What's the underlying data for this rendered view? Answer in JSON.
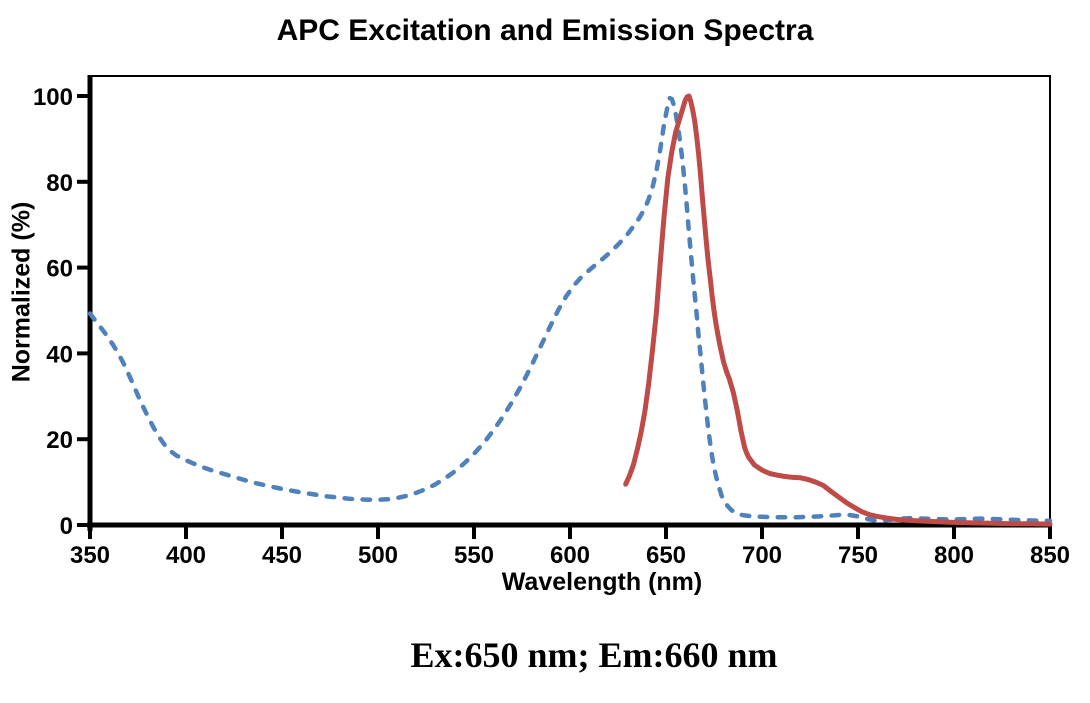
{
  "figure": {
    "caption": "Ex:650 nm; Em:660 nm"
  },
  "chart_data": {
    "type": "line",
    "title": "APC Excitation and Emission Spectra",
    "xlabel": "Wavelength (nm)",
    "ylabel": "Normalized (%)",
    "xlim": [
      350,
      850
    ],
    "ylim": [
      0,
      100
    ],
    "x_ticks": [
      350,
      400,
      450,
      500,
      550,
      600,
      650,
      700,
      750,
      800,
      850
    ],
    "y_ticks": [
      0,
      20,
      40,
      60,
      80,
      100
    ],
    "grid": false,
    "legend": "none",
    "axis_color": "#000000",
    "series": [
      {
        "name": "Excitation",
        "peak_nm": 650,
        "line_style": "dashed",
        "color": "#4F81BD",
        "points": [
          [
            350,
            49.3
          ],
          [
            353,
            47.5
          ],
          [
            356,
            45.8
          ],
          [
            359,
            44
          ],
          [
            362,
            42
          ],
          [
            365,
            39.8
          ],
          [
            368,
            37.2
          ],
          [
            371,
            34.3
          ],
          [
            374,
            31.2
          ],
          [
            377,
            28.2
          ],
          [
            380,
            25.4
          ],
          [
            383,
            22.8
          ],
          [
            386,
            20.5
          ],
          [
            389,
            18.6
          ],
          [
            392,
            17.2
          ],
          [
            395,
            16.2
          ],
          [
            399,
            15.3
          ],
          [
            403,
            14.5
          ],
          [
            408,
            13.6
          ],
          [
            413,
            12.8
          ],
          [
            419,
            12
          ],
          [
            425,
            11.2
          ],
          [
            431,
            10.4
          ],
          [
            437,
            9.7
          ],
          [
            443,
            9.1
          ],
          [
            449,
            8.5
          ],
          [
            455,
            8
          ],
          [
            461,
            7.5
          ],
          [
            467,
            7.1
          ],
          [
            473,
            6.7
          ],
          [
            479,
            6.4
          ],
          [
            485,
            6.1
          ],
          [
            490,
            6
          ],
          [
            495,
            5.9
          ],
          [
            500,
            5.9
          ],
          [
            505,
            6
          ],
          [
            510,
            6.3
          ],
          [
            515,
            6.8
          ],
          [
            520,
            7.5
          ],
          [
            525,
            8.4
          ],
          [
            530,
            9.5
          ],
          [
            535,
            10.9
          ],
          [
            540,
            12.5
          ],
          [
            545,
            14.4
          ],
          [
            550,
            16.6
          ],
          [
            555,
            19.1
          ],
          [
            560,
            22
          ],
          [
            565,
            25.2
          ],
          [
            570,
            28.8
          ],
          [
            575,
            32.8
          ],
          [
            580,
            37.2
          ],
          [
            585,
            41.9
          ],
          [
            590,
            46.6
          ],
          [
            594,
            50.2
          ],
          [
            598,
            53.3
          ],
          [
            602,
            55.8
          ],
          [
            606,
            57.8
          ],
          [
            610,
            59.4
          ],
          [
            614,
            60.9
          ],
          [
            618,
            62.4
          ],
          [
            622,
            64
          ],
          [
            626,
            65.8
          ],
          [
            630,
            67.8
          ],
          [
            633,
            69.6
          ],
          [
            636,
            71.5
          ],
          [
            639,
            73.8
          ],
          [
            641,
            76
          ],
          [
            643,
            78.8
          ],
          [
            645,
            82.5
          ],
          [
            647,
            87.5
          ],
          [
            649,
            93.5
          ],
          [
            651,
            98
          ],
          [
            652,
            99.5
          ],
          [
            653,
            99.3
          ],
          [
            654,
            98
          ],
          [
            655,
            96
          ],
          [
            656,
            93.5
          ],
          [
            657,
            90.5
          ],
          [
            658,
            87
          ],
          [
            659,
            83
          ],
          [
            660,
            78.5
          ],
          [
            661,
            73.5
          ],
          [
            662,
            68
          ],
          [
            663,
            63
          ],
          [
            664,
            58
          ],
          [
            665,
            53.5
          ],
          [
            666,
            49
          ],
          [
            667,
            44
          ],
          [
            668,
            39.5
          ],
          [
            669,
            35
          ],
          [
            670,
            30.5
          ],
          [
            671,
            26.5
          ],
          [
            672,
            22.5
          ],
          [
            673,
            19
          ],
          [
            674,
            16
          ],
          [
            675,
            13.5
          ],
          [
            676,
            11.5
          ],
          [
            677,
            9.8
          ],
          [
            678,
            8.2
          ],
          [
            679,
            6.8
          ],
          [
            680,
            5.7
          ],
          [
            682,
            4.5
          ],
          [
            684,
            3.5
          ],
          [
            686,
            2.9
          ],
          [
            688,
            2.5
          ],
          [
            690,
            2.3
          ],
          [
            695,
            2
          ],
          [
            700,
            1.9
          ],
          [
            706,
            1.8
          ],
          [
            712,
            1.8
          ],
          [
            718,
            1.8
          ],
          [
            724,
            1.9
          ],
          [
            730,
            2
          ],
          [
            736,
            2.2
          ],
          [
            742,
            2.4
          ],
          [
            746,
            2.3
          ],
          [
            750,
            2
          ],
          [
            754,
            1.5
          ],
          [
            758,
            1.1
          ],
          [
            762,
            1
          ],
          [
            766,
            1.2
          ],
          [
            772,
            1.5
          ],
          [
            778,
            1.6
          ],
          [
            784,
            1.5
          ],
          [
            790,
            1.4
          ],
          [
            796,
            1.3
          ],
          [
            802,
            1.3
          ],
          [
            808,
            1.4
          ],
          [
            814,
            1.5
          ],
          [
            820,
            1.4
          ],
          [
            826,
            1.3
          ],
          [
            832,
            1.2
          ],
          [
            838,
            1.1
          ],
          [
            844,
            1
          ],
          [
            850,
            1
          ]
        ]
      },
      {
        "name": "Emission",
        "peak_nm": 660,
        "line_style": "solid",
        "color": "#BE4B48",
        "points": [
          [
            629,
            9.5
          ],
          [
            631,
            11.5
          ],
          [
            633,
            14
          ],
          [
            635,
            17.5
          ],
          [
            637,
            21.5
          ],
          [
            639,
            26.5
          ],
          [
            641,
            33
          ],
          [
            643,
            41
          ],
          [
            645,
            49.5
          ],
          [
            647,
            61
          ],
          [
            649,
            72
          ],
          [
            651,
            81
          ],
          [
            653,
            87
          ],
          [
            655,
            91.5
          ],
          [
            657,
            94.5
          ],
          [
            659,
            97.5
          ],
          [
            660,
            99
          ],
          [
            661,
            99.8
          ],
          [
            662,
            100
          ],
          [
            663,
            98.5
          ],
          [
            664,
            96.5
          ],
          [
            665,
            94
          ],
          [
            666,
            90.5
          ],
          [
            667,
            86.5
          ],
          [
            668,
            81.5
          ],
          [
            669,
            76
          ],
          [
            670,
            71
          ],
          [
            671,
            66
          ],
          [
            672,
            61.5
          ],
          [
            673,
            57.5
          ],
          [
            674,
            53.5
          ],
          [
            675,
            50
          ],
          [
            676,
            47
          ],
          [
            677,
            44.5
          ],
          [
            678,
            42
          ],
          [
            679,
            40
          ],
          [
            680,
            38
          ],
          [
            681,
            36.5
          ],
          [
            682,
            35.2
          ],
          [
            683,
            34
          ],
          [
            684,
            32.5
          ],
          [
            685,
            31
          ],
          [
            686,
            29
          ],
          [
            687,
            27
          ],
          [
            688,
            24.5
          ],
          [
            689,
            22
          ],
          [
            690,
            20
          ],
          [
            691,
            18
          ],
          [
            692,
            16.8
          ],
          [
            693,
            15.8
          ],
          [
            696,
            14
          ],
          [
            700,
            12.8
          ],
          [
            704,
            12
          ],
          [
            708,
            11.6
          ],
          [
            712,
            11.3
          ],
          [
            716,
            11.1
          ],
          [
            720,
            11
          ],
          [
            724,
            10.6
          ],
          [
            728,
            10
          ],
          [
            732,
            9.2
          ],
          [
            736,
            7.8
          ],
          [
            740,
            6.5
          ],
          [
            744,
            5.2
          ],
          [
            748,
            4.1
          ],
          [
            752,
            3.1
          ],
          [
            756,
            2.4
          ],
          [
            760,
            2
          ],
          [
            765,
            1.6
          ],
          [
            770,
            1.3
          ],
          [
            775,
            1.1
          ],
          [
            780,
            1
          ],
          [
            790,
            0.8
          ],
          [
            800,
            0.6
          ],
          [
            810,
            0.5
          ],
          [
            820,
            0.4
          ],
          [
            830,
            0.3
          ],
          [
            840,
            0.3
          ],
          [
            850,
            0.2
          ]
        ]
      }
    ]
  }
}
